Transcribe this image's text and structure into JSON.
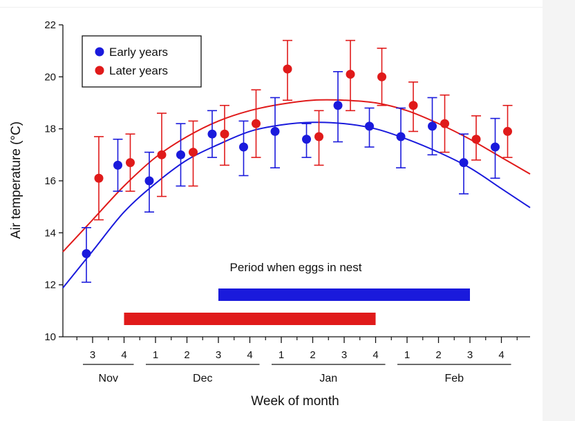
{
  "chart_data": {
    "type": "scatter",
    "ylabel": "Air temperature (°C)",
    "xlabel": "Week of month",
    "ylim": [
      10,
      22
    ],
    "yticks": [
      10,
      12,
      14,
      16,
      18,
      20,
      22
    ],
    "y_tick_labels": [
      "10",
      "12",
      "14",
      "16",
      "18",
      "20",
      "22"
    ],
    "x_weeks": [
      {
        "label": "3",
        "month": "Nov"
      },
      {
        "label": "4",
        "month": "Nov"
      },
      {
        "label": "1",
        "month": "Dec"
      },
      {
        "label": "2",
        "month": "Dec"
      },
      {
        "label": "3",
        "month": "Dec"
      },
      {
        "label": "4",
        "month": "Dec"
      },
      {
        "label": "1",
        "month": "Jan"
      },
      {
        "label": "2",
        "month": "Jan"
      },
      {
        "label": "3",
        "month": "Jan"
      },
      {
        "label": "4",
        "month": "Jan"
      },
      {
        "label": "1",
        "month": "Feb"
      },
      {
        "label": "2",
        "month": "Feb"
      },
      {
        "label": "3",
        "month": "Feb"
      },
      {
        "label": "4",
        "month": "Feb"
      }
    ],
    "months": [
      {
        "label": "Nov",
        "first": 0,
        "last": 1
      },
      {
        "label": "Dec",
        "first": 2,
        "last": 5
      },
      {
        "label": "Jan",
        "first": 6,
        "last": 9
      },
      {
        "label": "Feb",
        "first": 10,
        "last": 13
      }
    ],
    "series": [
      {
        "name": "Early years",
        "color": "#1a1adc",
        "values": [
          13.2,
          16.6,
          16.0,
          17.0,
          17.8,
          17.3,
          17.9,
          17.6,
          18.9,
          18.1,
          17.7,
          18.1,
          16.7,
          17.3
        ],
        "err_low": [
          12.1,
          15.6,
          14.8,
          15.8,
          16.9,
          16.2,
          16.5,
          16.9,
          17.5,
          17.3,
          16.5,
          17.0,
          15.5,
          16.1
        ],
        "err_high": [
          14.2,
          17.6,
          17.1,
          18.2,
          18.7,
          18.3,
          19.2,
          18.2,
          20.2,
          18.8,
          18.8,
          19.2,
          17.8,
          18.4
        ],
        "fit": [
          13.3,
          14.8,
          15.9,
          16.8,
          17.4,
          17.9,
          18.15,
          18.25,
          18.2,
          18.0,
          17.6,
          17.1,
          16.5,
          15.7
        ]
      },
      {
        "name": "Later years",
        "color": "#e01a1a",
        "values": [
          16.1,
          16.7,
          17.0,
          17.1,
          17.8,
          18.2,
          20.3,
          17.7,
          20.1,
          20.0,
          18.9,
          18.2,
          17.6,
          17.9
        ],
        "err_low": [
          14.5,
          15.6,
          15.4,
          15.8,
          16.6,
          16.9,
          19.1,
          16.6,
          18.7,
          18.9,
          17.9,
          17.1,
          16.8,
          16.9
        ],
        "err_high": [
          17.7,
          17.8,
          18.6,
          18.3,
          18.9,
          19.5,
          21.4,
          18.7,
          21.4,
          21.1,
          19.8,
          19.3,
          18.5,
          18.9
        ],
        "fit": [
          14.5,
          15.8,
          16.9,
          17.7,
          18.3,
          18.7,
          18.95,
          19.1,
          19.1,
          19.0,
          18.7,
          18.2,
          17.6,
          16.9
        ]
      }
    ],
    "annotation": "Period when eggs in nest",
    "egg_periods": [
      {
        "series": "Early years",
        "color": "#1a1adc",
        "start": 4,
        "end": 12
      },
      {
        "series": "Later years",
        "color": "#e01a1a",
        "start": 1,
        "end": 9
      }
    ],
    "legend": {
      "placement": "top-left",
      "entries": [
        "Early years",
        "Later years"
      ]
    },
    "grid": false
  }
}
